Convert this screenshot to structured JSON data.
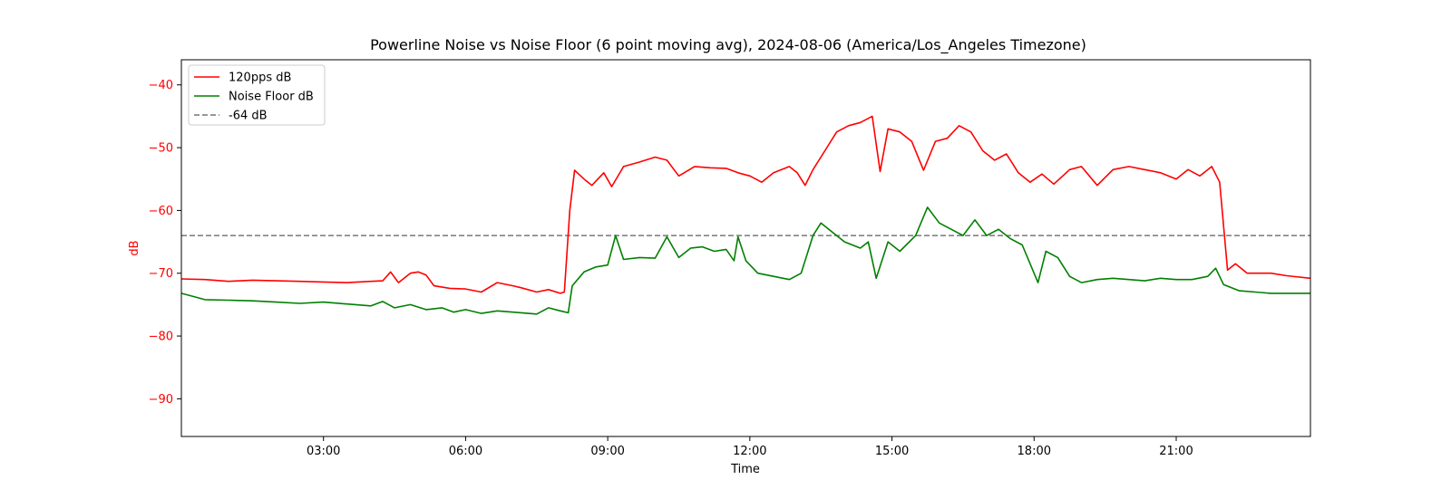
{
  "chart_data": {
    "type": "line",
    "title": "Powerline Noise vs Noise Floor (6 point moving avg), 2024-08-06 (America/Los_Angeles Timezone)",
    "xlabel": "Time",
    "ylabel": "dB",
    "xlim": [
      "00:00",
      "23:50"
    ],
    "ylim": [
      -96,
      -36
    ],
    "x_ticks": [
      "03:00",
      "06:00",
      "09:00",
      "12:00",
      "15:00",
      "18:00",
      "21:00"
    ],
    "y_ticks": [
      -40,
      -50,
      -60,
      -70,
      -80,
      -90
    ],
    "grid": false,
    "legend_position": "top-left",
    "colors": {
      "ylabel": "#ff0000",
      "yticks": "#ff0000"
    },
    "reference_line": {
      "name": "-64 dB",
      "y": -64,
      "color": "#777777",
      "style": "dashed"
    },
    "series": [
      {
        "name": "120pps dB",
        "color": "#ff0000",
        "points": [
          [
            "00:00",
            -70.9
          ],
          [
            "00:30",
            -71.0
          ],
          [
            "01:00",
            -71.3
          ],
          [
            "01:30",
            -71.1
          ],
          [
            "02:00",
            -71.2
          ],
          [
            "02:30",
            -71.3
          ],
          [
            "03:00",
            -71.4
          ],
          [
            "03:30",
            -71.5
          ],
          [
            "04:00",
            -71.3
          ],
          [
            "04:15",
            -71.2
          ],
          [
            "04:25",
            -69.8
          ],
          [
            "04:35",
            -71.5
          ],
          [
            "04:50",
            -70.0
          ],
          [
            "05:00",
            -69.8
          ],
          [
            "05:10",
            -70.3
          ],
          [
            "05:20",
            -72.0
          ],
          [
            "05:40",
            -72.4
          ],
          [
            "06:00",
            -72.5
          ],
          [
            "06:20",
            -73.0
          ],
          [
            "06:40",
            -71.5
          ],
          [
            "07:00",
            -72.0
          ],
          [
            "07:10",
            -72.3
          ],
          [
            "07:30",
            -73.0
          ],
          [
            "07:45",
            -72.6
          ],
          [
            "08:00",
            -73.2
          ],
          [
            "08:05",
            -73.0
          ],
          [
            "08:12",
            -60.0
          ],
          [
            "08:18",
            -53.6
          ],
          [
            "08:30",
            -55.0
          ],
          [
            "08:40",
            -56.0
          ],
          [
            "08:55",
            -54.0
          ],
          [
            "09:05",
            -56.2
          ],
          [
            "09:20",
            -53.0
          ],
          [
            "09:40",
            -52.3
          ],
          [
            "10:00",
            -51.5
          ],
          [
            "10:15",
            -52.0
          ],
          [
            "10:30",
            -54.5
          ],
          [
            "10:50",
            -53.0
          ],
          [
            "11:10",
            -53.2
          ],
          [
            "11:30",
            -53.3
          ],
          [
            "11:45",
            -54.0
          ],
          [
            "12:00",
            -54.5
          ],
          [
            "12:15",
            -55.5
          ],
          [
            "12:30",
            -54.0
          ],
          [
            "12:50",
            -53.0
          ],
          [
            "13:00",
            -54.0
          ],
          [
            "13:10",
            -56.0
          ],
          [
            "13:20",
            -53.5
          ],
          [
            "13:35",
            -50.5
          ],
          [
            "13:50",
            -47.5
          ],
          [
            "14:05",
            -46.5
          ],
          [
            "14:20",
            -46.0
          ],
          [
            "14:35",
            -45.0
          ],
          [
            "14:45",
            -53.8
          ],
          [
            "14:55",
            -47.0
          ],
          [
            "15:10",
            -47.5
          ],
          [
            "15:25",
            -49.0
          ],
          [
            "15:40",
            -53.6
          ],
          [
            "15:55",
            -49.0
          ],
          [
            "16:10",
            -48.5
          ],
          [
            "16:25",
            -46.5
          ],
          [
            "16:40",
            -47.5
          ],
          [
            "16:55",
            -50.5
          ],
          [
            "17:10",
            -52.0
          ],
          [
            "17:25",
            -51.0
          ],
          [
            "17:40",
            -54.0
          ],
          [
            "17:55",
            -55.5
          ],
          [
            "18:10",
            -54.2
          ],
          [
            "18:25",
            -55.8
          ],
          [
            "18:45",
            -53.5
          ],
          [
            "19:00",
            -53.0
          ],
          [
            "19:20",
            -56.0
          ],
          [
            "19:40",
            -53.5
          ],
          [
            "20:00",
            -53.0
          ],
          [
            "20:20",
            -53.5
          ],
          [
            "20:40",
            -54.0
          ],
          [
            "21:00",
            -55.0
          ],
          [
            "21:15",
            -53.5
          ],
          [
            "21:30",
            -54.5
          ],
          [
            "21:45",
            -53.0
          ],
          [
            "21:55",
            -55.5
          ],
          [
            "22:05",
            -69.5
          ],
          [
            "22:15",
            -68.5
          ],
          [
            "22:30",
            -70.0
          ],
          [
            "23:00",
            -70.0
          ],
          [
            "23:20",
            -70.4
          ],
          [
            "23:50",
            -70.8
          ]
        ]
      },
      {
        "name": "Noise Floor dB",
        "color": "#008000",
        "points": [
          [
            "00:00",
            -73.2
          ],
          [
            "00:30",
            -74.2
          ],
          [
            "01:00",
            -74.3
          ],
          [
            "01:30",
            -74.4
          ],
          [
            "02:00",
            -74.6
          ],
          [
            "02:30",
            -74.8
          ],
          [
            "03:00",
            -74.6
          ],
          [
            "03:30",
            -74.9
          ],
          [
            "04:00",
            -75.2
          ],
          [
            "04:15",
            -74.5
          ],
          [
            "04:30",
            -75.5
          ],
          [
            "04:50",
            -75.0
          ],
          [
            "05:10",
            -75.8
          ],
          [
            "05:30",
            -75.5
          ],
          [
            "05:45",
            -76.2
          ],
          [
            "06:00",
            -75.8
          ],
          [
            "06:20",
            -76.4
          ],
          [
            "06:40",
            -76.0
          ],
          [
            "07:00",
            -76.2
          ],
          [
            "07:30",
            -76.5
          ],
          [
            "07:45",
            -75.5
          ],
          [
            "08:00",
            -76.0
          ],
          [
            "08:10",
            -76.3
          ],
          [
            "08:15",
            -72.0
          ],
          [
            "08:30",
            -69.8
          ],
          [
            "08:45",
            -69.0
          ],
          [
            "09:00",
            -68.7
          ],
          [
            "09:10",
            -64.0
          ],
          [
            "09:20",
            -67.8
          ],
          [
            "09:40",
            -67.5
          ],
          [
            "10:00",
            -67.6
          ],
          [
            "10:15",
            -64.2
          ],
          [
            "10:30",
            -67.5
          ],
          [
            "10:45",
            -66.0
          ],
          [
            "11:00",
            -65.8
          ],
          [
            "11:15",
            -66.5
          ],
          [
            "11:30",
            -66.2
          ],
          [
            "11:40",
            -68.0
          ],
          [
            "11:45",
            -64.2
          ],
          [
            "11:55",
            -68.0
          ],
          [
            "12:10",
            -70.0
          ],
          [
            "12:30",
            -70.5
          ],
          [
            "12:50",
            -71.0
          ],
          [
            "13:05",
            -70.0
          ],
          [
            "13:20",
            -64.0
          ],
          [
            "13:30",
            -62.0
          ],
          [
            "13:45",
            -63.5
          ],
          [
            "14:00",
            -65.0
          ],
          [
            "14:20",
            -66.0
          ],
          [
            "14:30",
            -65.0
          ],
          [
            "14:40",
            -70.8
          ],
          [
            "14:55",
            -65.0
          ],
          [
            "15:10",
            -66.5
          ],
          [
            "15:30",
            -64.0
          ],
          [
            "15:45",
            -59.5
          ],
          [
            "16:00",
            -62.0
          ],
          [
            "16:15",
            -63.0
          ],
          [
            "16:30",
            -64.0
          ],
          [
            "16:45",
            -61.5
          ],
          [
            "17:00",
            -64.0
          ],
          [
            "17:15",
            -63.0
          ],
          [
            "17:30",
            -64.5
          ],
          [
            "17:45",
            -65.5
          ],
          [
            "17:55",
            -68.5
          ],
          [
            "18:05",
            -71.5
          ],
          [
            "18:15",
            -66.5
          ],
          [
            "18:30",
            -67.5
          ],
          [
            "18:45",
            -70.5
          ],
          [
            "19:00",
            -71.5
          ],
          [
            "19:20",
            -71.0
          ],
          [
            "19:40",
            -70.8
          ],
          [
            "20:00",
            -71.0
          ],
          [
            "20:20",
            -71.2
          ],
          [
            "20:40",
            -70.8
          ],
          [
            "21:00",
            -71.0
          ],
          [
            "21:20",
            -71.0
          ],
          [
            "21:40",
            -70.5
          ],
          [
            "21:50",
            -69.2
          ],
          [
            "22:00",
            -71.8
          ],
          [
            "22:20",
            -72.8
          ],
          [
            "22:40",
            -73.0
          ],
          [
            "23:00",
            -73.2
          ],
          [
            "23:30",
            -73.2
          ],
          [
            "23:50",
            -73.2
          ]
        ]
      }
    ]
  }
}
